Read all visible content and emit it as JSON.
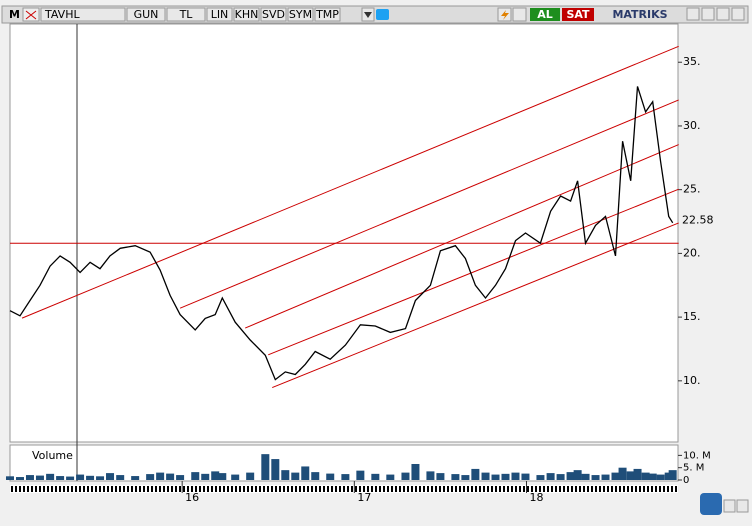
{
  "toolbar": {
    "logo": "M",
    "symbol": "TAVHL",
    "buttons": [
      "GUN",
      "TL",
      "LIN",
      "KHN",
      "SVD",
      "SYM",
      "TMP"
    ],
    "buy": "AL",
    "sell": "SAT",
    "brand": "MATRIKS"
  },
  "chart_data": {
    "type": "line",
    "x": [
      15.0,
      15.058,
      15.116,
      15.174,
      15.233,
      15.291,
      15.349,
      15.407,
      15.465,
      15.523,
      15.581,
      15.64,
      15.727,
      15.814,
      15.872,
      15.93,
      15.988,
      16.076,
      16.134,
      16.192,
      16.233,
      16.308,
      16.395,
      16.483,
      16.541,
      16.599,
      16.657,
      16.715,
      16.773,
      16.86,
      16.948,
      17.035,
      17.122,
      17.209,
      17.297,
      17.355,
      17.442,
      17.5,
      17.587,
      17.645,
      17.703,
      17.762,
      17.82,
      17.878,
      17.936,
      17.994,
      18.081,
      18.14,
      18.198,
      18.256,
      18.297,
      18.343,
      18.401,
      18.459,
      18.517,
      18.558,
      18.605,
      18.645,
      18.692,
      18.733,
      18.779,
      18.826,
      18.849
    ],
    "values": [
      15.5,
      15.1,
      16.3,
      17.5,
      19.0,
      19.8,
      19.3,
      18.5,
      19.3,
      18.8,
      19.8,
      20.4,
      20.6,
      20.1,
      18.7,
      16.7,
      15.2,
      14.0,
      14.9,
      15.2,
      16.5,
      14.6,
      13.2,
      12.0,
      10.1,
      10.7,
      10.5,
      11.3,
      12.3,
      11.7,
      12.8,
      14.4,
      14.3,
      13.8,
      14.1,
      16.3,
      17.5,
      20.2,
      20.6,
      19.6,
      17.5,
      16.5,
      17.5,
      18.8,
      21.0,
      21.6,
      20.8,
      23.3,
      24.5,
      24.1,
      25.7,
      20.8,
      22.2,
      22.9,
      19.8,
      28.8,
      25.7,
      33.1,
      31.1,
      31.9,
      27.2,
      22.9,
      22.4
    ],
    "color": "#000000",
    "xlim": [
      15.0,
      18.88
    ],
    "xticks": [
      16,
      17,
      18
    ],
    "ylim": [
      5.2,
      38
    ],
    "yticks": [
      {
        "value": 10,
        "label": "10."
      },
      {
        "value": 15,
        "label": "15."
      },
      {
        "value": 20,
        "label": "20."
      },
      {
        "value": 25,
        "label": "25."
      },
      {
        "value": 30,
        "label": "30."
      },
      {
        "value": 35,
        "label": "35."
      }
    ],
    "last_price": 22.58,
    "trend_color": "#cc0000",
    "trend_lines": [
      {
        "x": [
          15.07,
          18.884
        ],
        "values": [
          14.92,
          36.25
        ]
      },
      {
        "x": [
          15.988,
          18.884
        ],
        "values": [
          15.7,
          32.04
        ]
      },
      {
        "x": [
          16.366,
          18.884
        ],
        "values": [
          14.14,
          28.54
        ]
      },
      {
        "x": [
          16.5,
          18.884
        ],
        "values": [
          12.04,
          25.04
        ]
      },
      {
        "x": [
          16.523,
          18.884
        ],
        "values": [
          9.47,
          22.39
        ]
      },
      {
        "x": [
          15.0,
          18.884
        ],
        "values": [
          20.8,
          20.8
        ]
      }
    ],
    "volume": {
      "title": "Volume",
      "color": "#1f4e79",
      "ylim": [
        0,
        13.4
      ],
      "yticks": [
        0,
        {
          "value": 5,
          "label": "5. M"
        },
        {
          "value": 10,
          "label": "10. M"
        }
      ],
      "values": [
        1.5,
        1.2,
        2.0,
        1.8,
        2.5,
        1.6,
        1.4,
        2.2,
        1.7,
        1.5,
        2.8,
        2.0,
        1.6,
        2.4,
        3.0,
        2.6,
        2.0,
        3.2,
        2.5,
        3.5,
        2.8,
        2.2,
        3.0,
        10.5,
        8.5,
        4.0,
        3.0,
        5.5,
        3.2,
        2.6,
        2.4,
        3.8,
        2.5,
        2.2,
        3.0,
        6.5,
        3.5,
        2.8,
        2.4,
        2.0,
        4.5,
        3.0,
        2.2,
        2.5,
        3.0,
        2.6,
        2.0,
        2.8,
        2.4,
        3.2,
        4.0,
        2.5,
        2.0,
        2.2,
        3.0,
        5.0,
        3.5,
        4.5,
        3.0,
        2.6,
        2.2,
        3.0,
        4.0
      ]
    }
  }
}
